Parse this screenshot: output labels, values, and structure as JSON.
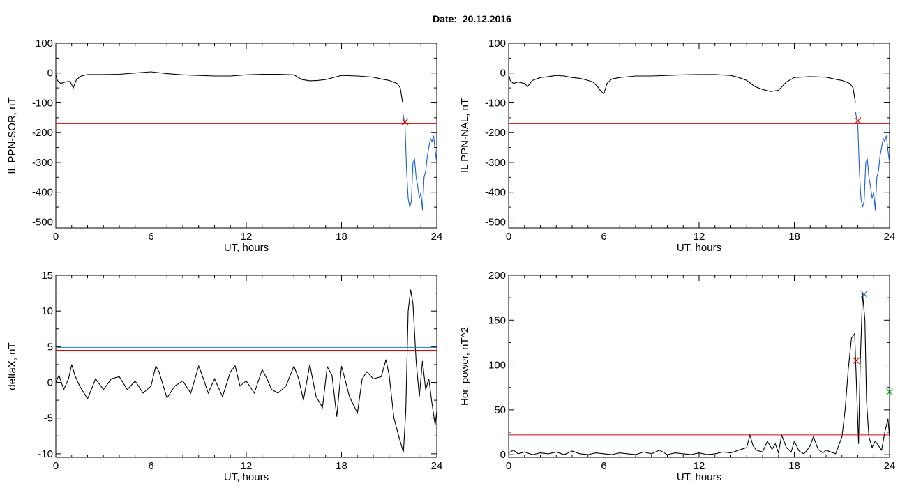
{
  "figure_title": "Date:  20.12.2016",
  "colors": {
    "line": "#000000",
    "threshold": "#e00000",
    "event": "#1a5fd0",
    "alt_threshold": "#1c7fb0",
    "marker_green": "#2ca02c"
  },
  "chart_data": [
    {
      "id": "sor",
      "type": "line",
      "ylabel": "IL PPN-SOR, nT",
      "xlabel": "UT, hours",
      "xlim": [
        0,
        24
      ],
      "ylim": [
        -520,
        100
      ],
      "xticks": [
        0,
        6,
        12,
        18,
        24
      ],
      "yticks": [
        100,
        0,
        -100,
        -200,
        -300,
        -400,
        -500
      ],
      "threshold": -170,
      "markers": [
        {
          "x": 22.0,
          "y": -163,
          "color": "red"
        }
      ],
      "series": [
        {
          "color": "black",
          "x": [
            0,
            0.1,
            0.3,
            0.6,
            0.9,
            1.1,
            1.3,
            1.6,
            2,
            3,
            4,
            5,
            6,
            7,
            8,
            9,
            10,
            11,
            12,
            13,
            14,
            15,
            15.5,
            16,
            16.5,
            17,
            18,
            19,
            20,
            20.5,
            21,
            21.5,
            21.7,
            21.85
          ],
          "y": [
            -5,
            -25,
            -35,
            -30,
            -28,
            -50,
            -22,
            -10,
            -5,
            -5,
            -4,
            0,
            4,
            -2,
            -6,
            -8,
            -10,
            -10,
            -6,
            -4,
            -4,
            -6,
            -22,
            -26,
            -25,
            -22,
            -8,
            -10,
            -14,
            -20,
            -25,
            -35,
            -50,
            -100
          ]
        },
        {
          "color": "blue",
          "x": [
            21.85,
            22,
            22.1,
            22.2,
            22.3,
            22.4,
            22.5,
            22.6,
            22.7,
            22.8,
            22.9,
            23,
            23.1,
            23.2,
            23.3,
            23.4,
            23.5,
            23.6,
            23.7,
            23.8,
            23.9,
            24
          ],
          "y": [
            -130,
            -175,
            -330,
            -420,
            -450,
            -430,
            -300,
            -290,
            -350,
            -380,
            -420,
            -400,
            -460,
            -350,
            -330,
            -280,
            -250,
            -220,
            -230,
            -210,
            -260,
            -300
          ]
        }
      ]
    },
    {
      "id": "nal",
      "type": "line",
      "ylabel": "IL PPN-NAL, nT",
      "xlabel": "UT, hours",
      "xlim": [
        0,
        24
      ],
      "ylim": [
        -520,
        100
      ],
      "xticks": [
        0,
        6,
        12,
        18,
        24
      ],
      "yticks": [
        100,
        0,
        -100,
        -200,
        -300,
        -400,
        -500
      ],
      "threshold": -170,
      "markers": [
        {
          "x": 22.0,
          "y": -160,
          "color": "red"
        }
      ],
      "series": [
        {
          "color": "black",
          "x": [
            0,
            0.1,
            0.3,
            0.6,
            1.0,
            1.2,
            1.5,
            2,
            2.5,
            3,
            3.5,
            4,
            4.5,
            5,
            5.3,
            5.6,
            5.8,
            6,
            6.2,
            6.5,
            7,
            8,
            9,
            10,
            11,
            12,
            13,
            14,
            14.5,
            15,
            15.5,
            16,
            16.5,
            17,
            17.5,
            18,
            19,
            20,
            20.5,
            21,
            21.5,
            21.7,
            21.85
          ],
          "y": [
            -5,
            -25,
            -35,
            -30,
            -35,
            -45,
            -25,
            -15,
            -12,
            -8,
            -10,
            -15,
            -18,
            -25,
            -30,
            -45,
            -60,
            -70,
            -35,
            -20,
            -15,
            -10,
            -10,
            -8,
            -6,
            -5,
            -5,
            -8,
            -15,
            -25,
            -45,
            -55,
            -62,
            -58,
            -30,
            -15,
            -12,
            -14,
            -20,
            -25,
            -35,
            -50,
            -100
          ]
        },
        {
          "color": "blue",
          "x": [
            21.85,
            22,
            22.1,
            22.2,
            22.3,
            22.4,
            22.5,
            22.6,
            22.7,
            22.8,
            22.9,
            23,
            23.1,
            23.2,
            23.3,
            23.4,
            23.5,
            23.6,
            23.7,
            23.8,
            23.9,
            24
          ],
          "y": [
            -130,
            -175,
            -330,
            -420,
            -450,
            -430,
            -300,
            -290,
            -350,
            -380,
            -420,
            -400,
            -460,
            -350,
            -330,
            -280,
            -250,
            -220,
            -230,
            -210,
            -260,
            -300
          ]
        }
      ]
    },
    {
      "id": "deltax",
      "type": "line",
      "ylabel": "deltaX, nT",
      "xlabel": "UT, hours",
      "xlim": [
        0,
        24
      ],
      "ylim": [
        -10.5,
        15
      ],
      "xticks": [
        0,
        6,
        12,
        18,
        24
      ],
      "yticks": [
        15,
        10,
        5,
        0,
        -5,
        -10
      ],
      "threshold": 4.5,
      "alt_threshold": 4.9,
      "markers": [],
      "series": [
        {
          "color": "black",
          "x": [
            0,
            0.2,
            0.5,
            0.8,
            1.0,
            1.2,
            1.5,
            2.0,
            2.5,
            3.0,
            3.5,
            4.0,
            4.5,
            5.0,
            5.5,
            6.0,
            6.3,
            6.5,
            7.0,
            7.5,
            8.0,
            8.5,
            9.0,
            9.3,
            9.6,
            10.0,
            10.5,
            11.0,
            11.3,
            11.6,
            12.0,
            12.5,
            13.0,
            13.3,
            13.6,
            14.0,
            14.5,
            15.0,
            15.3,
            15.6,
            16.0,
            16.4,
            16.8,
            17.1,
            17.4,
            17.7,
            18.0,
            18.5,
            19.0,
            19.3,
            19.6,
            20.0,
            20.5,
            20.8,
            21.0,
            21.3,
            21.6,
            21.9,
            22.05,
            22.2,
            22.35,
            22.5,
            22.7,
            22.9,
            23.1,
            23.3,
            23.5,
            23.7,
            23.9,
            24
          ],
          "y": [
            0,
            1,
            -1,
            0.5,
            2.5,
            1,
            -0.5,
            -2.3,
            0.5,
            -1,
            0.5,
            0.8,
            -1,
            0.2,
            -1.5,
            -0.5,
            2.3,
            1.5,
            -2.2,
            -0.5,
            0.2,
            -1.5,
            2.3,
            0.5,
            -1.5,
            0.5,
            -2,
            1.5,
            2.3,
            -0.5,
            0.2,
            -1.5,
            1.8,
            0.5,
            -1,
            -1.5,
            -0.5,
            2.3,
            0.5,
            -2.5,
            2.5,
            -2,
            -3.5,
            2.2,
            1,
            -4.8,
            2.3,
            -2,
            -4.3,
            0.5,
            1.5,
            0.5,
            0.8,
            3.2,
            1,
            -5,
            -7.5,
            -9.8,
            -4,
            10,
            13,
            11,
            3,
            -2,
            3,
            -1,
            0.5,
            -3,
            -6,
            -4
          ]
        }
      ]
    },
    {
      "id": "power",
      "type": "line",
      "ylabel": "Hor. power, nT^2",
      "xlabel": "UT, hours",
      "xlim": [
        0,
        24
      ],
      "ylim": [
        -3,
        200
      ],
      "xticks": [
        0,
        6,
        12,
        18,
        24
      ],
      "yticks": [
        200,
        150,
        100,
        50,
        0
      ],
      "threshold": 22,
      "markers": [
        {
          "x": 21.9,
          "y": 105,
          "color": "red"
        },
        {
          "x": 22.4,
          "y": 179,
          "color": "blue"
        },
        {
          "x": 24.0,
          "y": 70,
          "color": "green"
        }
      ],
      "series": [
        {
          "color": "black",
          "x": [
            0,
            0.3,
            0.6,
            1.0,
            1.5,
            2.0,
            2.5,
            3.0,
            3.5,
            4.0,
            4.5,
            5.0,
            5.5,
            6.0,
            6.5,
            7.0,
            7.5,
            8.0,
            8.5,
            9.0,
            9.5,
            10.0,
            10.5,
            11.0,
            11.5,
            12.0,
            12.5,
            13.0,
            13.5,
            14.0,
            14.5,
            15.0,
            15.2,
            15.4,
            15.6,
            16.0,
            16.3,
            16.6,
            16.8,
            17.0,
            17.2,
            17.5,
            17.8,
            18.0,
            18.3,
            18.6,
            18.8,
            19.0,
            19.2,
            19.5,
            19.8,
            20.0,
            20.3,
            20.6,
            21.0,
            21.2,
            21.4,
            21.6,
            21.8,
            21.95,
            22.05,
            22.15,
            22.3,
            22.45,
            22.55,
            22.7,
            22.9,
            23.1,
            23.3,
            23.5,
            23.7,
            23.9,
            24
          ],
          "y": [
            2,
            5,
            1,
            3,
            0,
            2,
            1,
            3,
            0,
            4,
            1,
            0,
            2,
            1,
            0,
            2,
            1,
            0,
            3,
            1,
            5,
            0,
            2,
            1,
            0,
            2,
            0,
            1,
            3,
            2,
            5,
            8,
            22,
            10,
            5,
            3,
            15,
            6,
            12,
            2,
            22,
            8,
            3,
            15,
            4,
            1,
            5,
            10,
            20,
            6,
            2,
            5,
            3,
            1,
            20,
            50,
            95,
            130,
            135,
            60,
            12,
            100,
            180,
            150,
            60,
            20,
            8,
            15,
            10,
            5,
            25,
            40,
            20
          ]
        }
      ]
    }
  ]
}
